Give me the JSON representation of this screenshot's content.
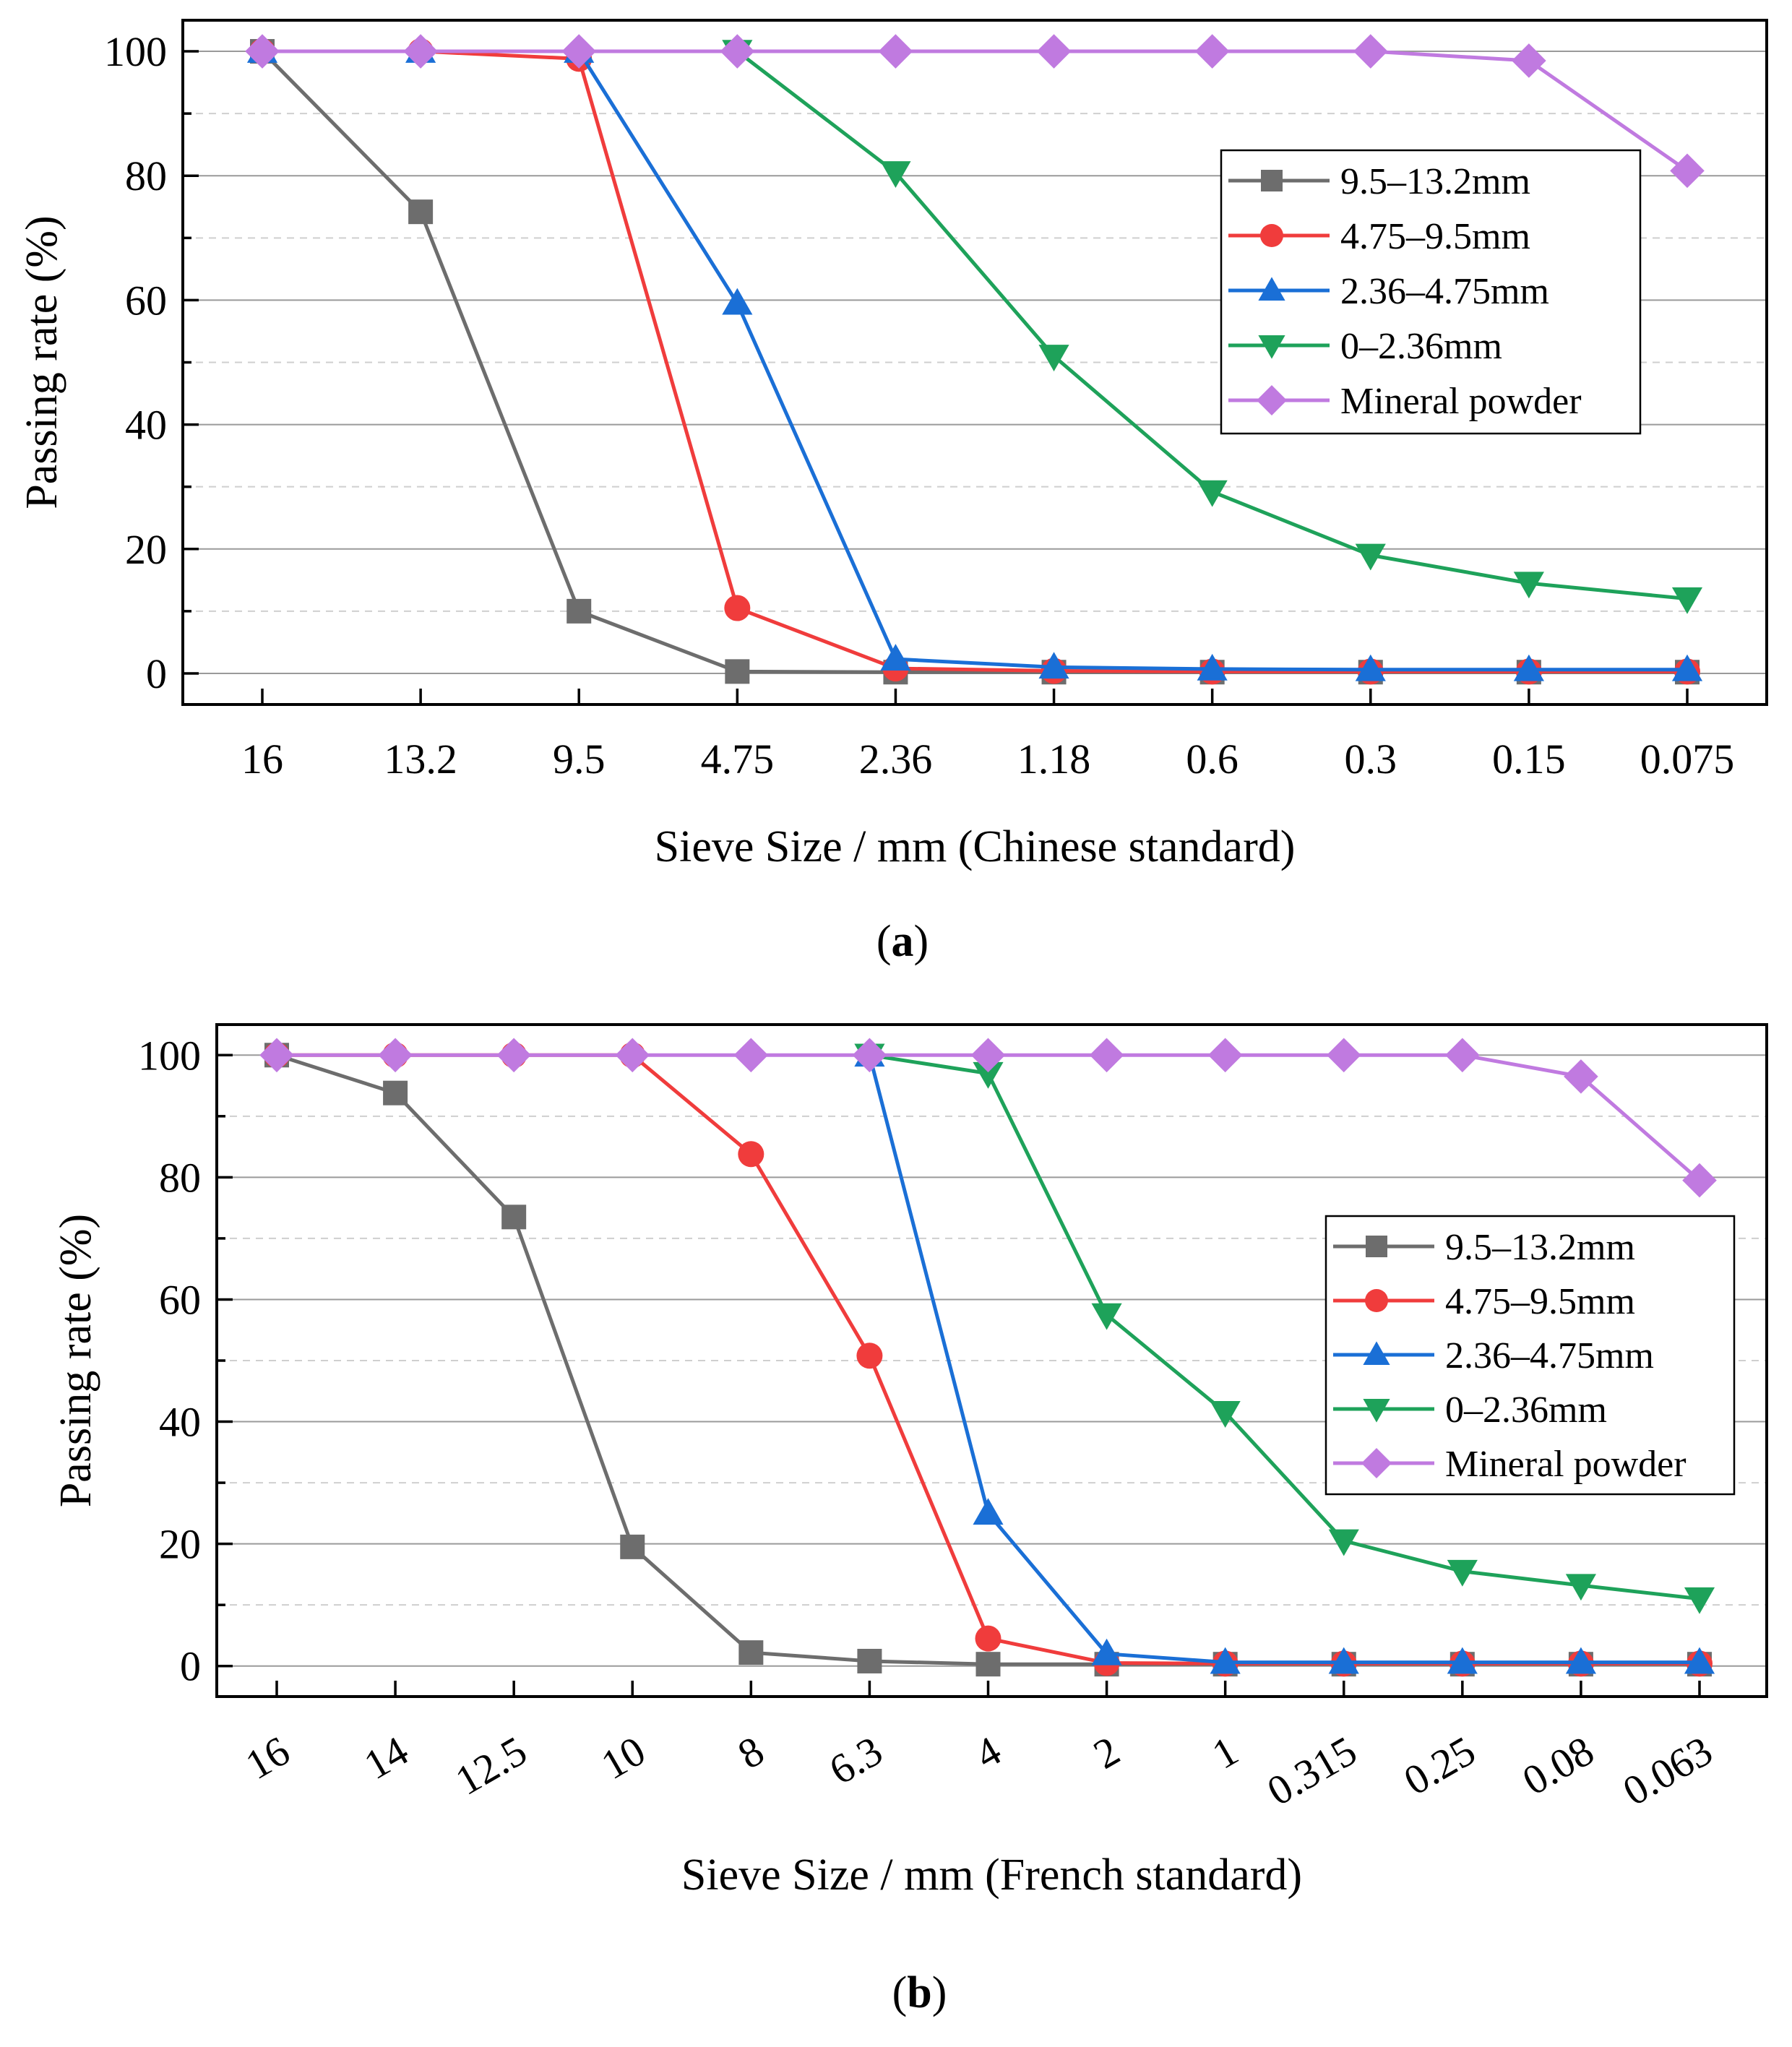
{
  "chart_data": [
    {
      "type": "line",
      "panel_label": "a",
      "xlabel": "Sieve Size / mm (Chinese standard)",
      "ylabel": "Passing rate (%)",
      "ylim": [
        -5,
        105
      ],
      "yticks": [
        0,
        20,
        40,
        60,
        80,
        100
      ],
      "grid": "on",
      "legend_position": "right",
      "categories": [
        "16",
        "13.2",
        "9.5",
        "4.75",
        "2.36",
        "1.18",
        "0.6",
        "0.3",
        "0.15",
        "0.075"
      ],
      "series": [
        {
          "name": "9.5–13.2mm",
          "color": "#6d6d6d",
          "marker": "square",
          "values": [
            100,
            74.2,
            10.0,
            0.3,
            0.2,
            0.2,
            0.2,
            0.2,
            0.2,
            0.2
          ]
        },
        {
          "name": "4.75–9.5mm",
          "color": "#f03c3c",
          "marker": "circle",
          "values": [
            100,
            100,
            98.8,
            10.5,
            0.8,
            0.4,
            0.3,
            0.3,
            0.3,
            0.3
          ]
        },
        {
          "name": "2.36–4.75mm",
          "color": "#1a6fd6",
          "marker": "triangle-up",
          "values": [
            100,
            100,
            100,
            59.5,
            2.3,
            1.0,
            0.7,
            0.6,
            0.6,
            0.6
          ]
        },
        {
          "name": "0–2.36mm",
          "color": "#1ea25a",
          "marker": "triangle-down",
          "values": [
            null,
            null,
            null,
            100,
            80.5,
            51.0,
            29.2,
            19.0,
            14.5,
            12.0
          ]
        },
        {
          "name": "Mineral powder",
          "color": "#c07ae0",
          "marker": "diamond",
          "values": [
            100,
            100,
            100,
            100,
            100,
            100,
            100,
            100,
            98.5,
            80.8
          ]
        }
      ]
    },
    {
      "type": "line",
      "panel_label": "b",
      "xlabel": "Sieve Size / mm (French standard)",
      "ylabel": "Passing rate (%)",
      "ylim": [
        -5,
        105
      ],
      "yticks": [
        0,
        20,
        40,
        60,
        80,
        100
      ],
      "grid": "on",
      "legend_position": "right",
      "categories": [
        "16",
        "14",
        "12.5",
        "10",
        "8",
        "6.3",
        "4",
        "2",
        "1",
        "0.315",
        "0.25",
        "0.08",
        "0.063"
      ],
      "series": [
        {
          "name": "9.5–13.2mm",
          "color": "#6d6d6d",
          "marker": "square",
          "values": [
            100,
            93.8,
            73.5,
            19.5,
            2.2,
            0.8,
            0.3,
            0.3,
            0.3,
            0.3,
            0.3,
            0.3,
            0.3
          ]
        },
        {
          "name": "4.75–9.5mm",
          "color": "#f03c3c",
          "marker": "circle",
          "values": [
            100,
            100,
            100,
            100,
            83.8,
            50.8,
            4.5,
            0.5,
            0.4,
            0.4,
            0.4,
            0.4,
            0.4
          ]
        },
        {
          "name": "2.36–4.75mm",
          "color": "#1a6fd6",
          "marker": "triangle-up",
          "values": [
            null,
            null,
            null,
            null,
            null,
            100,
            25.0,
            2.0,
            0.6,
            0.6,
            0.6,
            0.6,
            0.6
          ]
        },
        {
          "name": "0–2.36mm",
          "color": "#1ea25a",
          "marker": "triangle-down",
          "values": [
            null,
            null,
            null,
            null,
            null,
            100,
            97.0,
            57.5,
            41.5,
            20.5,
            15.5,
            13.2,
            11.0
          ]
        },
        {
          "name": "Mineral powder",
          "color": "#c07ae0",
          "marker": "diamond",
          "values": [
            100,
            100,
            100,
            100,
            100,
            100,
            100,
            100,
            100,
            100,
            100,
            96.5,
            79.5
          ]
        }
      ]
    }
  ]
}
